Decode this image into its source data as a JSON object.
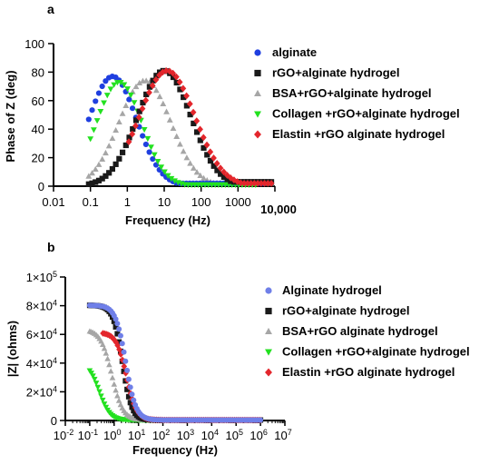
{
  "colors": {
    "blue": "#1f3fe0",
    "blue_light": "#6f7fe8",
    "black": "#1a1a1a",
    "gray": "#a6a6a6",
    "green": "#22e11f",
    "red": "#e3262c"
  },
  "chart_data": [
    {
      "panel": "a",
      "type": "scatter",
      "xscale": "log",
      "xlabel": "Frequency (Hz)",
      "ylabel": "Phase of Z (deg)",
      "xlim": [
        0.01,
        10000
      ],
      "ylim": [
        0,
        100
      ],
      "x_tick_labels": [
        "0.01",
        "0.1",
        "1",
        "10",
        "100",
        "1000",
        "10,000"
      ],
      "y_tick_labels": [
        "0",
        "20",
        "40",
        "60",
        "80",
        "100"
      ],
      "legend_position": "right",
      "series": [
        {
          "name": "alginate",
          "marker": "circle",
          "color": "#1f3fe0",
          "peak_x": 0.4,
          "peak_y": 77,
          "width": 0.65,
          "start_x": 0.09,
          "low_x": 5000,
          "low_y": 2
        },
        {
          "name": "rGO+alginate hydrogel",
          "marker": "square",
          "color": "#1a1a1a",
          "peak_x": 10,
          "peak_y": 81,
          "width": 0.72,
          "start_x": 0.09,
          "low_x": 8000,
          "low_y": 3
        },
        {
          "name": "BSA+rGO+alginate hydrogel",
          "marker": "triangle-up",
          "color": "#a6a6a6",
          "peak_x": 3,
          "peak_y": 74,
          "width": 0.7,
          "start_x": 0.09,
          "low_x": 8000,
          "low_y": 2
        },
        {
          "name": "Collagen +rGO+alginate hydrogel",
          "marker": "triangle-down",
          "color": "#22e11f",
          "peak_x": 0.6,
          "peak_y": 73,
          "width": 0.62,
          "start_x": 0.1,
          "low_x": 3000,
          "low_y": 1
        },
        {
          "name": "Elastin +rGO alginate hydrogel",
          "marker": "diamond",
          "color": "#e3262c",
          "peak_x": 12,
          "peak_y": 81,
          "width": 0.75,
          "start_x": 1.1,
          "low_x": 8000,
          "low_y": 2
        }
      ]
    },
    {
      "panel": "b",
      "type": "scatter",
      "xscale": "log",
      "xlabel": "Frequency (Hz)",
      "ylabel": "|Z| (ohms)",
      "xlim": [
        0.01,
        10000000
      ],
      "ylim": [
        0,
        100000
      ],
      "x_tick_labels": [
        {
          "base": "10",
          "exp": "-2"
        },
        {
          "base": "10",
          "exp": "-1"
        },
        {
          "base": "10",
          "exp": "0"
        },
        {
          "base": "10",
          "exp": "1"
        },
        {
          "base": "10",
          "exp": "2"
        },
        {
          "base": "10",
          "exp": "3"
        },
        {
          "base": "10",
          "exp": "4"
        },
        {
          "base": "10",
          "exp": "5"
        },
        {
          "base": "10",
          "exp": "6"
        },
        {
          "base": "10",
          "exp": "7"
        }
      ],
      "y_tick_labels": [
        {
          "base": "0",
          "exp": ""
        },
        {
          "base": "2×10",
          "exp": "4"
        },
        {
          "base": "4×10",
          "exp": "4"
        },
        {
          "base": "6×10",
          "exp": "4"
        },
        {
          "base": "8×10",
          "exp": "4"
        },
        {
          "base": "1×10",
          "exp": "5"
        }
      ],
      "legend_position": "right",
      "series": [
        {
          "name": "Alginate hydrogel",
          "marker": "circle",
          "color": "#6f7fe8",
          "start_y": 80000,
          "half_x": 3,
          "steep": 2.1,
          "start_x": 0.1,
          "end_x": 1000000
        },
        {
          "name": "rGO+alginate hydrogel",
          "marker": "square",
          "color": "#1a1a1a",
          "start_y": 80000,
          "half_x": 2.2,
          "steep": 2.3,
          "start_x": 0.1,
          "end_x": 1000000
        },
        {
          "name": "BSA+rGO alginate hydrogel",
          "marker": "triangle-up",
          "color": "#a6a6a6",
          "start_y": 63000,
          "half_x": 0.8,
          "steep": 1.9,
          "start_x": 0.1,
          "end_x": 1000000
        },
        {
          "name": "Collagen +rGO+alginate hydrogel",
          "marker": "triangle-down",
          "color": "#22e11f",
          "start_y": 40000,
          "half_x": 0.25,
          "steep": 2.0,
          "start_x": 0.1,
          "end_x": 1000000
        },
        {
          "name": "Elastin +rGO alginate hydrogel",
          "marker": "diamond",
          "color": "#e3262c",
          "start_y": 61000,
          "half_x": 3.2,
          "steep": 2.1,
          "start_x": 0.35,
          "end_x": 1000000
        }
      ]
    }
  ]
}
